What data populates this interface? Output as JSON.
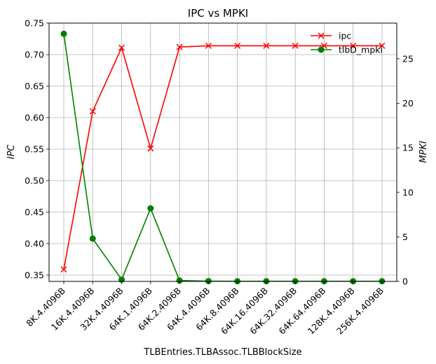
{
  "chart_data": {
    "type": "line",
    "title": "IPC vs MPKI",
    "xlabel": "TLBEntries.TLBAssoc.TLBBlockSize",
    "ylabel_left": "IPC",
    "ylabel_right": "MPKI",
    "categories": [
      "8K.4.4096B",
      "16K.4.4096B",
      "32K.4.4096B",
      "64K.1.4096B",
      "64K.2.4096B",
      "64K.4.4096B",
      "64K.8.4096B",
      "64K.16.4096B",
      "64K.32.4096B",
      "64K.64.4096B",
      "128K.4.4096B",
      "256K.4.4096B"
    ],
    "ylim_left": [
      0.34,
      0.75
    ],
    "ylim_right": [
      0,
      29
    ],
    "yticks_left": [
      "0.35",
      "0.40",
      "0.45",
      "0.50",
      "0.55",
      "0.60",
      "0.65",
      "0.70",
      "0.75"
    ],
    "yticks_right": [
      "0",
      "5",
      "10",
      "15",
      "20",
      "25"
    ],
    "grid": true,
    "legend_position": "top-right",
    "series": [
      {
        "name": "ipc",
        "axis": "left",
        "color": "#ff0000",
        "marker": "x",
        "values": [
          0.359,
          0.61,
          0.711,
          0.551,
          0.712,
          0.714,
          0.714,
          0.714,
          0.714,
          0.714,
          0.714,
          0.714
        ]
      },
      {
        "name": "tlbD_mpki",
        "axis": "right",
        "color": "#008000",
        "marker": "circle",
        "values": [
          27.8,
          4.8,
          0.2,
          8.2,
          0.1,
          0.03,
          0.02,
          0.02,
          0.02,
          0.02,
          0.02,
          0.02
        ]
      }
    ]
  }
}
